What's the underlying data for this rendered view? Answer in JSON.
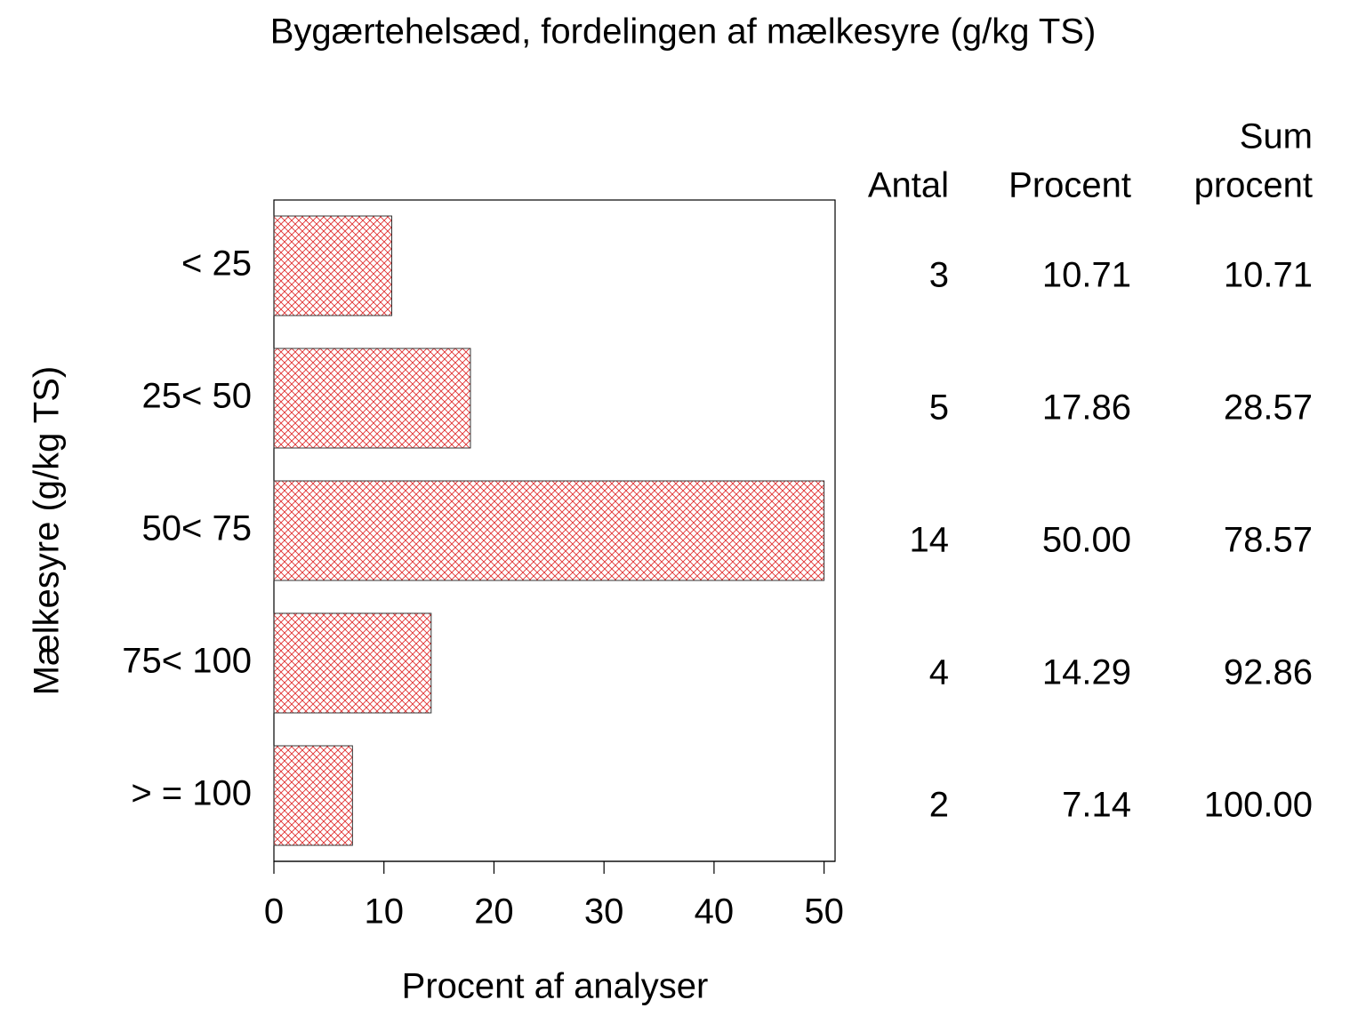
{
  "chart_data": {
    "type": "hbar",
    "title": "Bygærtehelsæd, fordelingen af mælkesyre (g/kg TS)",
    "x_label": "Procent af analyser",
    "y_label": "Mælkesyre (g/kg TS)",
    "categories": [
      "< 25",
      "25< 50",
      "50< 75",
      "75< 100",
      "> = 100"
    ],
    "values": [
      10.71,
      17.86,
      50.0,
      14.29,
      7.14
    ],
    "value_labels": [
      "10.71",
      "17.86",
      "50.00",
      "14.29",
      "7.14"
    ],
    "color": "#e03030",
    "xlim": [
      0,
      51
    ],
    "xticks": [
      0,
      10,
      20,
      30,
      40,
      50
    ],
    "table": {
      "antal_header": [
        "Antal"
      ],
      "antal": [
        3,
        5,
        14,
        4,
        2
      ],
      "procent_header": [
        "Procent"
      ],
      "sum_header": [
        "Sum",
        "procent"
      ],
      "sum": [
        10.71,
        28.57,
        78.57,
        92.86,
        100.0
      ],
      "sum_labels": [
        "10.71",
        "28.57",
        "78.57",
        "92.86",
        "100.00"
      ]
    }
  }
}
